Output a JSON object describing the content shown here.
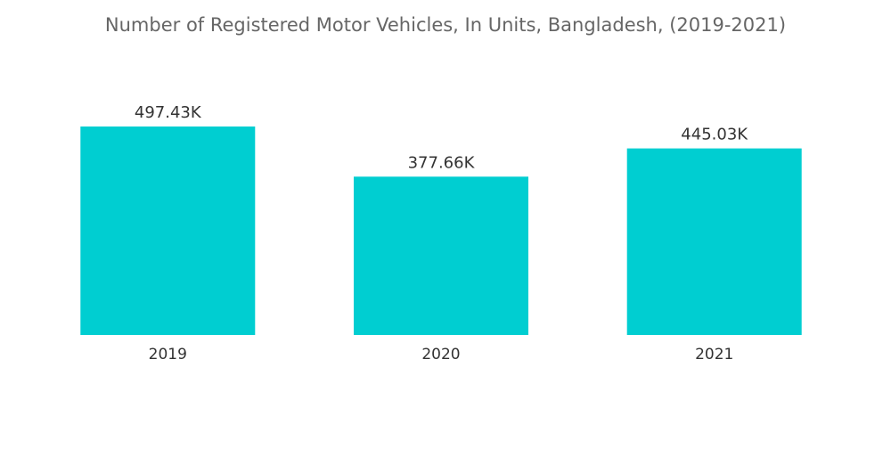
{
  "chart_data": {
    "type": "bar",
    "title": "Number of Registered Motor Vehicles, In Units, Bangladesh, (2019-2021)",
    "categories": [
      "2019",
      "2020",
      "2021"
    ],
    "values": [
      497.43,
      377.66,
      445.03
    ],
    "value_labels": [
      "497.43K",
      "377.66K",
      "445.03K"
    ],
    "unit": "K",
    "xlabel": "",
    "ylabel": "",
    "ylim": [
      0,
      500
    ],
    "grid": false,
    "legend": "none",
    "colors": {
      "bar": "#00CED1"
    }
  }
}
